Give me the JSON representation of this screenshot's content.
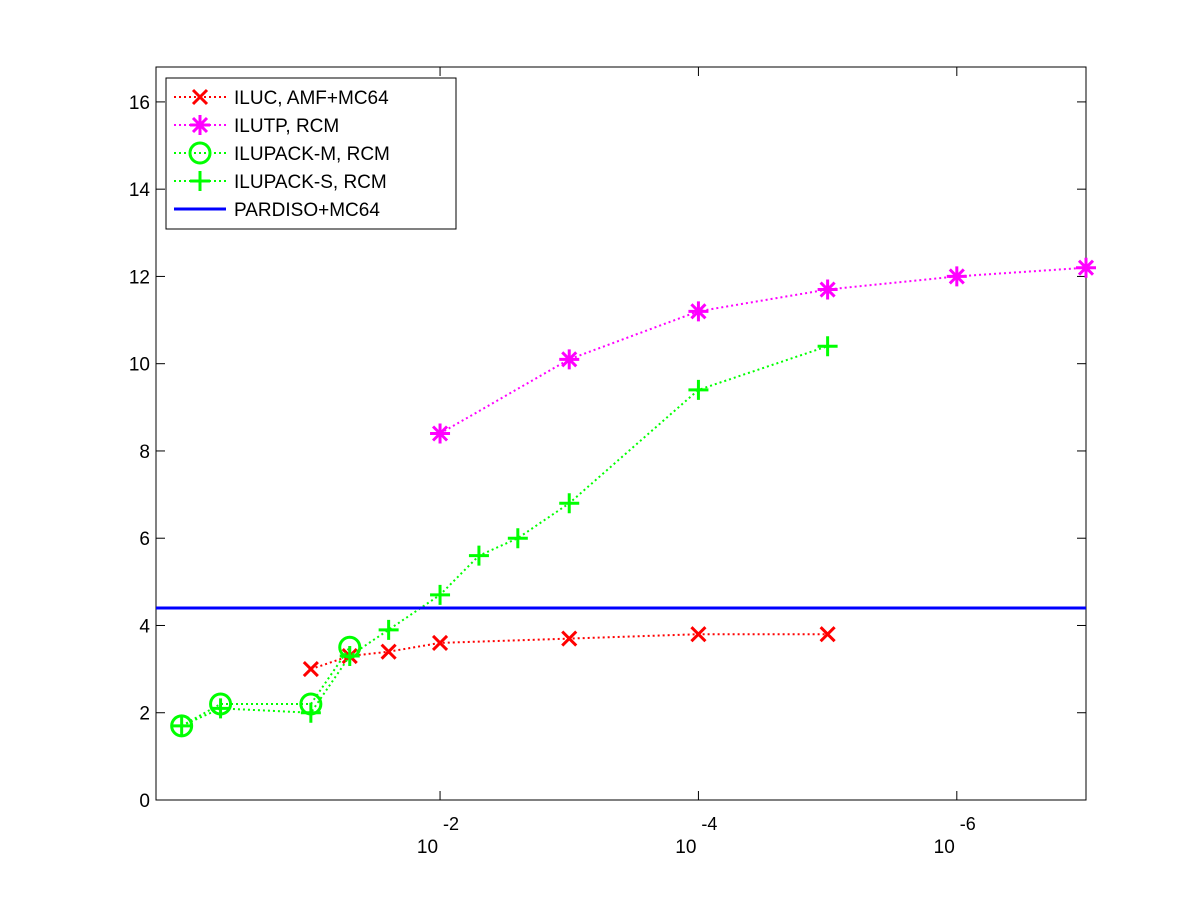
{
  "chart_data": {
    "type": "line",
    "title": "",
    "xlabel": "",
    "ylabel": "",
    "x_scale": "log",
    "x_reversed": true,
    "x_range": [
      1.58,
      1e-07
    ],
    "xticks": [
      {
        "value": 0.01,
        "base": "10",
        "exponent": "-2"
      },
      {
        "value": 0.0001,
        "base": "10",
        "exponent": "-4"
      },
      {
        "value": 1e-06,
        "base": "10",
        "exponent": "-6"
      }
    ],
    "ylim": [
      0,
      16.8
    ],
    "yticks": [
      {
        "value": 0,
        "label": "0"
      },
      {
        "value": 2,
        "label": "2"
      },
      {
        "value": 4,
        "label": "4"
      },
      {
        "value": 6,
        "label": "6"
      },
      {
        "value": 8,
        "label": "8"
      },
      {
        "value": 10,
        "label": "10"
      },
      {
        "value": 12,
        "label": "12"
      },
      {
        "value": 14,
        "label": "14"
      },
      {
        "value": 16,
        "label": "16"
      }
    ],
    "grid": false,
    "legend_position": "top-left",
    "series": [
      {
        "name": "ILUC, AMF+MC64",
        "color": "#ff0000",
        "marker": "x",
        "line_style": "dotted",
        "x": [
          0.1,
          0.05,
          0.025,
          0.01,
          0.001,
          0.0001,
          1e-05
        ],
        "y": [
          3.0,
          3.3,
          3.4,
          3.6,
          3.7,
          3.8,
          3.8
        ]
      },
      {
        "name": "ILUTP, RCM",
        "color": "#ff00ff",
        "marker": "asterisk",
        "line_style": "dotted",
        "x": [
          0.01,
          0.001,
          0.0001,
          1e-05,
          1e-06,
          1e-07
        ],
        "y": [
          8.4,
          10.1,
          11.2,
          11.7,
          12.0,
          12.2
        ]
      },
      {
        "name": "ILUPACK-M, RCM",
        "color": "#00ff00",
        "marker": "circle",
        "line_style": "dotted",
        "x": [
          1.0,
          0.5,
          0.1,
          0.05
        ],
        "y": [
          1.7,
          2.2,
          2.2,
          3.5
        ]
      },
      {
        "name": "ILUPACK-S, RCM",
        "color": "#00ff00",
        "marker": "plus",
        "line_style": "dotted",
        "x": [
          1.0,
          0.5,
          0.1,
          0.05,
          0.025,
          0.01,
          0.005,
          0.0025,
          0.001,
          0.0001,
          1e-05
        ],
        "y": [
          1.7,
          2.1,
          2.0,
          3.3,
          3.9,
          4.7,
          5.6,
          6.0,
          6.8,
          9.4,
          10.4
        ]
      },
      {
        "name": "PARDISO+MC64",
        "color": "#0000ff",
        "marker": "none",
        "line_style": "solid",
        "x": [
          1.58,
          1e-07
        ],
        "y": [
          4.4,
          4.4
        ]
      }
    ]
  }
}
